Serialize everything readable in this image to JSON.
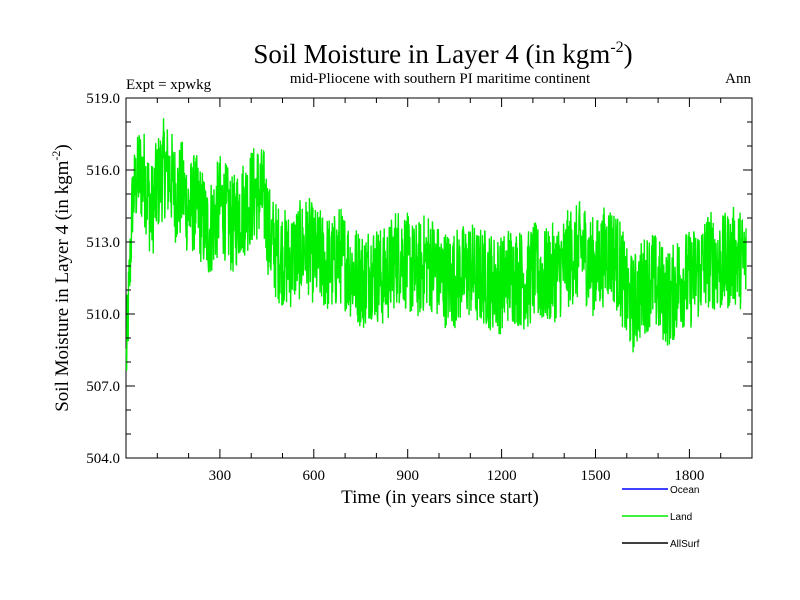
{
  "chart_data": {
    "type": "line",
    "title_main": "Soil Moisture in Layer 4 (in kgm",
    "title_sup": "-2",
    "title_end": ")",
    "subtitle_left": "Expt = xpwkg",
    "subtitle_center": "mid-Pliocene with southern PI maritime continent",
    "subtitle_right": "Ann",
    "xlabel": "Time (in years since start)",
    "ylabel_main": "Soil Moisture in Layer 4 (in kgm",
    "ylabel_sup": "-2",
    "ylabel_end": ")",
    "xlim": [
      0,
      2000
    ],
    "ylim": [
      504.0,
      519.0
    ],
    "xticks": [
      300,
      600,
      900,
      1200,
      1500,
      1800
    ],
    "xtick_labels": [
      "300",
      "600",
      "900",
      "1200",
      "1500",
      "1800"
    ],
    "yticks": [
      504.0,
      507.0,
      510.0,
      513.0,
      516.0,
      519.0
    ],
    "ytick_labels": [
      "504.0",
      "507.0",
      "510.0",
      "513.0",
      "516.0",
      "519.0"
    ],
    "legend": [
      {
        "name": "Ocean",
        "color": "#0000ff"
      },
      {
        "name": "Land",
        "color": "#00ee00"
      },
      {
        "name": "AllSurf",
        "color": "#000000"
      }
    ],
    "series": [
      {
        "name": "Land",
        "color": "#00ee00",
        "x_start": 1,
        "x_step": 20,
        "values": [
          508.0,
          514.8,
          515.9,
          515.6,
          514.2,
          515.4,
          516.1,
          515.8,
          514.9,
          515.2,
          514.3,
          514.7,
          514.1,
          513.4,
          513.9,
          514.6,
          514.2,
          513.6,
          514.3,
          514.5,
          514.9,
          515.1,
          514.8,
          513.1,
          512.6,
          512.4,
          512.2,
          512.5,
          512.7,
          512.9,
          512.4,
          512.3,
          512.1,
          512.0,
          512.5,
          512.2,
          511.8,
          511.6,
          511.4,
          511.9,
          511.7,
          511.5,
          511.8,
          512.4,
          512.5,
          512.1,
          511.7,
          511.9,
          512.3,
          512.1,
          511.6,
          511.5,
          511.4,
          511.6,
          511.7,
          511.9,
          511.5,
          511.6,
          511.4,
          511.3,
          511.2,
          511.7,
          511.6,
          511.5,
          511.3,
          511.8,
          511.6,
          511.5,
          511.7,
          511.8,
          512.1,
          512.4,
          512.5,
          512.8,
          512.1,
          511.9,
          512.3,
          512.7,
          512.4,
          511.8,
          510.6,
          510.4,
          510.9,
          511.3,
          511.5,
          511.1,
          510.8,
          510.6,
          511.3,
          511.5,
          511.4,
          511.7,
          511.9,
          512.3,
          512.2,
          512.0,
          512.2,
          512.4,
          512.3,
          512.2
        ]
      }
    ]
  }
}
